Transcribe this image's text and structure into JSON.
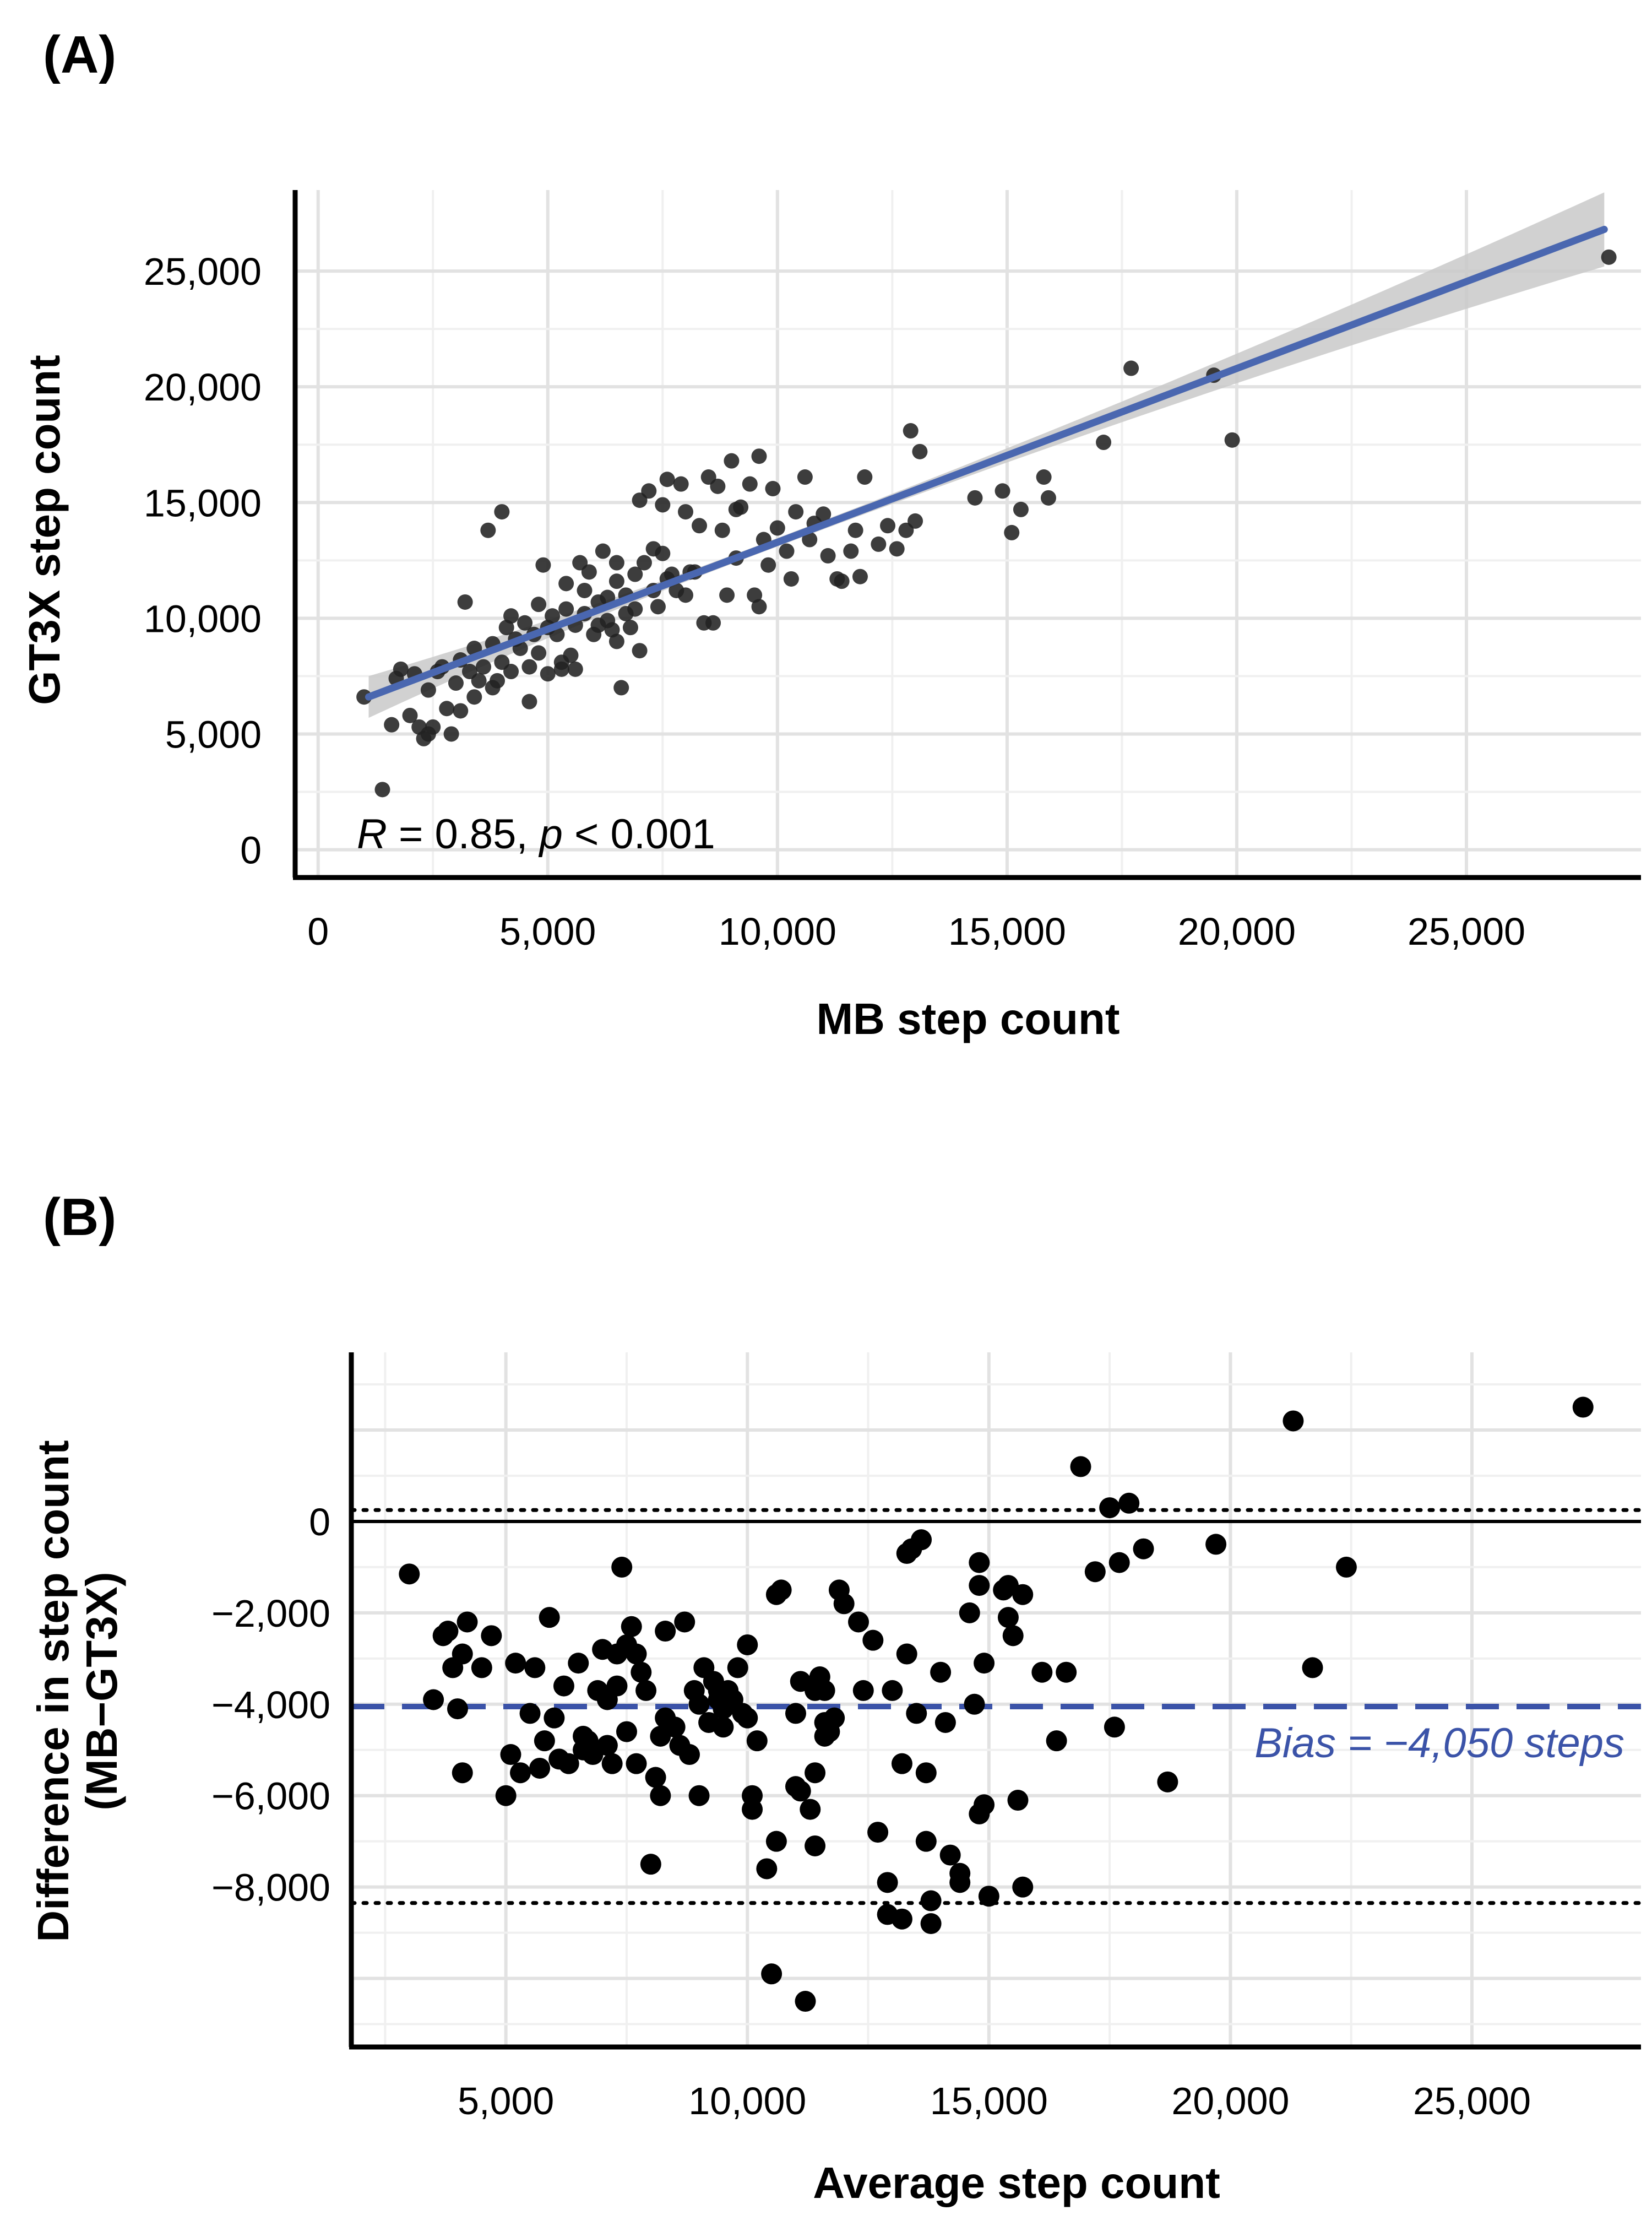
{
  "figure": {
    "panel_a_label": "(A)",
    "panel_b_label": "(B)"
  },
  "chart_data": [
    {
      "type": "scatter",
      "panel": "A",
      "xlabel": "MB step count",
      "ylabel": "GT3X step count",
      "xlim": [
        -500,
        28800
      ],
      "ylim": [
        -1200,
        28500
      ],
      "xticks": [
        0,
        5000,
        10000,
        15000,
        20000,
        25000
      ],
      "xtick_labels": [
        "0",
        "5,000",
        "10,000",
        "15,000",
        "20,000",
        "25,000"
      ],
      "yticks": [
        0,
        5000,
        10000,
        15000,
        20000,
        25000
      ],
      "ytick_labels": [
        "0",
        "5,000",
        "10,000",
        "15,000",
        "20,000",
        "25,000"
      ],
      "grid": true,
      "annotation": {
        "r_symbol": "R",
        "r_text": " = 0.85, ",
        "p_symbol": "p",
        "p_text": " < 0.001"
      },
      "regression": {
        "x_start": 1100,
        "y_start": 6600,
        "x_end": 28000,
        "y_end": 26800,
        "ci_start": 900,
        "ci_end": 1600,
        "ci_mid": 180
      },
      "point_color": "#222222",
      "line_color": "#4a67b0",
      "ci_color": "#c9c9c9",
      "points": [
        [
          1000,
          6600
        ],
        [
          1400,
          2600
        ],
        [
          1600,
          5400
        ],
        [
          1700,
          7400
        ],
        [
          1800,
          7800
        ],
        [
          2000,
          5800
        ],
        [
          2100,
          7600
        ],
        [
          2200,
          5300
        ],
        [
          2300,
          4800
        ],
        [
          2400,
          5000
        ],
        [
          2400,
          6900
        ],
        [
          2500,
          5300
        ],
        [
          2600,
          7700
        ],
        [
          2700,
          7900
        ],
        [
          2800,
          6100
        ],
        [
          2900,
          5000
        ],
        [
          3000,
          7200
        ],
        [
          3100,
          8200
        ],
        [
          3100,
          6000
        ],
        [
          3200,
          10700
        ],
        [
          3300,
          7700
        ],
        [
          3400,
          6600
        ],
        [
          3400,
          8700
        ],
        [
          3500,
          7300
        ],
        [
          3600,
          7900
        ],
        [
          3700,
          13800
        ],
        [
          3800,
          7000
        ],
        [
          3800,
          8900
        ],
        [
          3900,
          7300
        ],
        [
          4000,
          14600
        ],
        [
          4000,
          8100
        ],
        [
          4100,
          9600
        ],
        [
          4200,
          7700
        ],
        [
          4200,
          10100
        ],
        [
          4300,
          9100
        ],
        [
          4400,
          8700
        ],
        [
          4500,
          9800
        ],
        [
          4600,
          7900
        ],
        [
          4600,
          6400
        ],
        [
          4700,
          9300
        ],
        [
          4800,
          8500
        ],
        [
          4800,
          10600
        ],
        [
          4900,
          12300
        ],
        [
          5000,
          9600
        ],
        [
          5000,
          7600
        ],
        [
          5100,
          10100
        ],
        [
          5200,
          9300
        ],
        [
          5300,
          8100
        ],
        [
          5300,
          7800
        ],
        [
          5400,
          11500
        ],
        [
          5400,
          10400
        ],
        [
          5500,
          8400
        ],
        [
          5600,
          7800
        ],
        [
          5600,
          9700
        ],
        [
          5700,
          12400
        ],
        [
          5800,
          11200
        ],
        [
          5800,
          10200
        ],
        [
          5900,
          12000
        ],
        [
          6000,
          9300
        ],
        [
          6100,
          9700
        ],
        [
          6100,
          10700
        ],
        [
          6200,
          12900
        ],
        [
          6300,
          9900
        ],
        [
          6300,
          10900
        ],
        [
          6400,
          9500
        ],
        [
          6500,
          9000
        ],
        [
          6500,
          11600
        ],
        [
          6500,
          12400
        ],
        [
          6600,
          7000
        ],
        [
          6700,
          11000
        ],
        [
          6700,
          10200
        ],
        [
          6800,
          9600
        ],
        [
          6900,
          11900
        ],
        [
          6900,
          10400
        ],
        [
          7000,
          15100
        ],
        [
          7000,
          8600
        ],
        [
          7100,
          12400
        ],
        [
          7200,
          15500
        ],
        [
          7300,
          11200
        ],
        [
          7300,
          13000
        ],
        [
          7400,
          10500
        ],
        [
          7500,
          12800
        ],
        [
          7500,
          14900
        ],
        [
          7600,
          16000
        ],
        [
          7600,
          11700
        ],
        [
          7700,
          11900
        ],
        [
          7800,
          11200
        ],
        [
          7900,
          15800
        ],
        [
          8000,
          11000
        ],
        [
          8000,
          14600
        ],
        [
          8100,
          12000
        ],
        [
          8200,
          12000
        ],
        [
          8300,
          14000
        ],
        [
          8400,
          9800
        ],
        [
          8500,
          16100
        ],
        [
          8600,
          9800
        ],
        [
          8700,
          15700
        ],
        [
          8800,
          13800
        ],
        [
          8900,
          11000
        ],
        [
          9000,
          16800
        ],
        [
          9100,
          14700
        ],
        [
          9100,
          12600
        ],
        [
          9200,
          14800
        ],
        [
          9400,
          15800
        ],
        [
          9500,
          11000
        ],
        [
          9600,
          10500
        ],
        [
          9600,
          17000
        ],
        [
          9700,
          13400
        ],
        [
          9800,
          12300
        ],
        [
          9900,
          15600
        ],
        [
          10000,
          13900
        ],
        [
          10200,
          12900
        ],
        [
          10300,
          11700
        ],
        [
          10400,
          14600
        ],
        [
          10600,
          16100
        ],
        [
          10700,
          13400
        ],
        [
          10800,
          14100
        ],
        [
          11000,
          14500
        ],
        [
          11100,
          12700
        ],
        [
          11300,
          11700
        ],
        [
          11400,
          11600
        ],
        [
          11600,
          12900
        ],
        [
          11700,
          13800
        ],
        [
          11800,
          11800
        ],
        [
          11900,
          16100
        ],
        [
          12200,
          13200
        ],
        [
          12400,
          14000
        ],
        [
          12600,
          13000
        ],
        [
          12800,
          13800
        ],
        [
          12900,
          18100
        ],
        [
          13000,
          14200
        ],
        [
          13100,
          17200
        ],
        [
          14300,
          15200
        ],
        [
          14900,
          15500
        ],
        [
          15100,
          13700
        ],
        [
          15300,
          14700
        ],
        [
          15800,
          16100
        ],
        [
          15900,
          15200
        ],
        [
          17100,
          17600
        ],
        [
          17700,
          20800
        ],
        [
          19500,
          20500
        ],
        [
          19900,
          17700
        ],
        [
          28100,
          25600
        ]
      ]
    },
    {
      "type": "scatter",
      "panel": "B",
      "xlabel": "Average step count",
      "ylabel_line1": "Difference in step count",
      "ylabel_line2": "(MB−GT3X)",
      "xlim": [
        1800,
        28500
      ],
      "ylim": [
        -11500,
        3700
      ],
      "xticks": [
        5000,
        10000,
        15000,
        20000,
        25000
      ],
      "xtick_labels": [
        "5,000",
        "10,000",
        "15,000",
        "20,000",
        "25,000"
      ],
      "yticks": [
        0,
        -2000,
        -4000,
        -6000,
        -8000
      ],
      "ytick_labels": [
        "0",
        "−2,000",
        "−4,000",
        "−6,000",
        "−8,000"
      ],
      "grid": true,
      "bias": -4050,
      "upper_loa": 250,
      "lower_loa": -8350,
      "zero_line": 0,
      "bias_label": "Bias = −4,050 steps",
      "point_color": "#000000",
      "bias_color": "#3b53a8",
      "points": [
        [
          3000,
          -1150
        ],
        [
          3500,
          -3900
        ],
        [
          3700,
          -2500
        ],
        [
          3800,
          -2400
        ],
        [
          3900,
          -3200
        ],
        [
          4000,
          -4100
        ],
        [
          4100,
          -2900
        ],
        [
          4100,
          -5500
        ],
        [
          4200,
          -2200
        ],
        [
          4500,
          -3200
        ],
        [
          4700,
          -2500
        ],
        [
          5000,
          -6000
        ],
        [
          5100,
          -5100
        ],
        [
          5200,
          -3100
        ],
        [
          5300,
          -5500
        ],
        [
          5500,
          -4200
        ],
        [
          5600,
          -3200
        ],
        [
          5700,
          -5400
        ],
        [
          5800,
          -4800
        ],
        [
          5900,
          -2100
        ],
        [
          6000,
          -4300
        ],
        [
          6100,
          -5200
        ],
        [
          6200,
          -3600
        ],
        [
          6300,
          -5300
        ],
        [
          6500,
          -3100
        ],
        [
          6600,
          -4700
        ],
        [
          6600,
          -5000
        ],
        [
          6700,
          -4800
        ],
        [
          6800,
          -5100
        ],
        [
          6900,
          -3700
        ],
        [
          7000,
          -2800
        ],
        [
          7100,
          -3900
        ],
        [
          7100,
          -4900
        ],
        [
          7200,
          -5300
        ],
        [
          7300,
          -3600
        ],
        [
          7300,
          -2900
        ],
        [
          7400,
          -1000
        ],
        [
          7500,
          -2700
        ],
        [
          7500,
          -4600
        ],
        [
          7600,
          -2300
        ],
        [
          7700,
          -5300
        ],
        [
          7700,
          -2900
        ],
        [
          7800,
          -3300
        ],
        [
          7900,
          -3700
        ],
        [
          8000,
          -7500
        ],
        [
          8100,
          -5600
        ],
        [
          8200,
          -4700
        ],
        [
          8200,
          -6000
        ],
        [
          8300,
          -2400
        ],
        [
          8300,
          -4300
        ],
        [
          8500,
          -4500
        ],
        [
          8600,
          -4900
        ],
        [
          8700,
          -2200
        ],
        [
          8800,
          -5100
        ],
        [
          8900,
          -3700
        ],
        [
          9000,
          -4000
        ],
        [
          9000,
          -6000
        ],
        [
          9100,
          -3200
        ],
        [
          9200,
          -4400
        ],
        [
          9300,
          -3500
        ],
        [
          9400,
          -3700
        ],
        [
          9400,
          -3900
        ],
        [
          9500,
          -4100
        ],
        [
          9500,
          -4500
        ],
        [
          9600,
          -3700
        ],
        [
          9700,
          -3900
        ],
        [
          9800,
          -3200
        ],
        [
          9900,
          -4200
        ],
        [
          10000,
          -4300
        ],
        [
          10000,
          -2700
        ],
        [
          10100,
          -6000
        ],
        [
          10100,
          -6300
        ],
        [
          10200,
          -4800
        ],
        [
          10400,
          -7600
        ],
        [
          10500,
          -9900
        ],
        [
          10600,
          -7000
        ],
        [
          10600,
          -1600
        ],
        [
          10700,
          -1500
        ],
        [
          11000,
          -5800
        ],
        [
          11000,
          -4200
        ],
        [
          11100,
          -3500
        ],
        [
          11100,
          -5900
        ],
        [
          11200,
          -10500
        ],
        [
          11300,
          -6300
        ],
        [
          11400,
          -7100
        ],
        [
          11400,
          -5500
        ],
        [
          11400,
          -3700
        ],
        [
          11500,
          -3400
        ],
        [
          11600,
          -3700
        ],
        [
          11600,
          -4400
        ],
        [
          11600,
          -4700
        ],
        [
          11700,
          -4600
        ],
        [
          11800,
          -4300
        ],
        [
          11900,
          -1500
        ],
        [
          12000,
          -1800
        ],
        [
          12300,
          -2200
        ],
        [
          12400,
          -3700
        ],
        [
          12600,
          -2600
        ],
        [
          12700,
          -6800
        ],
        [
          12900,
          -8600
        ],
        [
          12900,
          -7900
        ],
        [
          13000,
          -3700
        ],
        [
          13200,
          -8700
        ],
        [
          13200,
          -5300
        ],
        [
          13300,
          -2900
        ],
        [
          13300,
          -700
        ],
        [
          13400,
          -600
        ],
        [
          13500,
          -4200
        ],
        [
          13600,
          -400
        ],
        [
          13700,
          -5500
        ],
        [
          13700,
          -7000
        ],
        [
          13800,
          -8800
        ],
        [
          13800,
          -8300
        ],
        [
          14000,
          -3300
        ],
        [
          14100,
          -4400
        ],
        [
          14200,
          -7300
        ],
        [
          14400,
          -7900
        ],
        [
          14400,
          -7700
        ],
        [
          14600,
          -2000
        ],
        [
          14700,
          -4000
        ],
        [
          14800,
          -900
        ],
        [
          14800,
          -1400
        ],
        [
          14800,
          -6400
        ],
        [
          14900,
          -3100
        ],
        [
          14900,
          -6200
        ],
        [
          15000,
          -8200
        ],
        [
          15300,
          -1500
        ],
        [
          15400,
          -1400
        ],
        [
          15400,
          -2100
        ],
        [
          15500,
          -2500
        ],
        [
          15600,
          -6100
        ],
        [
          15700,
          -8000
        ],
        [
          15700,
          -1600
        ],
        [
          16100,
          -3300
        ],
        [
          16400,
          -4800
        ],
        [
          16600,
          -3300
        ],
        [
          16900,
          1200
        ],
        [
          17200,
          -1100
        ],
        [
          17500,
          300
        ],
        [
          17600,
          -4500
        ],
        [
          17700,
          -900
        ],
        [
          17900,
          400
        ],
        [
          18200,
          -600
        ],
        [
          18700,
          -5700
        ],
        [
          19700,
          -500
        ],
        [
          21300,
          2200
        ],
        [
          21700,
          -3200
        ],
        [
          22400,
          -1000
        ],
        [
          27300,
          2500
        ]
      ]
    }
  ]
}
